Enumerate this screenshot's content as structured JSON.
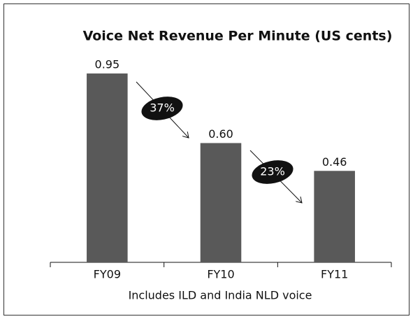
{
  "chart_data": {
    "type": "bar",
    "title": "Voice Net Revenue Per Minute (US cents)",
    "categories": [
      "FY09",
      "FY10",
      "FY11"
    ],
    "values": [
      0.95,
      0.6,
      0.46
    ],
    "value_labels": [
      "0.95",
      "0.60",
      "0.46"
    ],
    "color": "#595959",
    "ylim": [
      0,
      1.2
    ],
    "xlabel": "Includes ILD and India NLD voice",
    "annotations": [
      "37%",
      "23%"
    ]
  }
}
